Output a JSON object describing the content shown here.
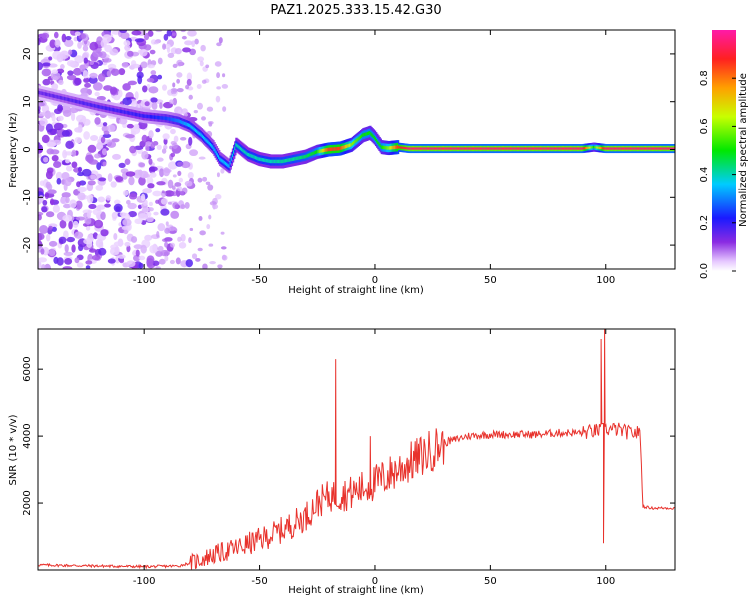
{
  "title": "PAZ1.2025.333.15.42.G30",
  "colors": {
    "snr_line": "#e8322c",
    "axis": "#000000",
    "background": "#ffffff"
  },
  "chart_data": [
    {
      "type": "heatmap",
      "name": "spectrogram",
      "xlabel": "Height of straight line (km)",
      "ylabel": "Frequency (Hz)",
      "xlim": [
        -146,
        130
      ],
      "ylim": [
        -25,
        25
      ],
      "xticks": [
        -100,
        -50,
        0,
        50,
        100
      ],
      "yticks": [
        -20,
        -10,
        0,
        10,
        20
      ],
      "colorbar": {
        "label": "Normalized spectral amplitude",
        "range": [
          0,
          1
        ],
        "ticks": [
          "0.0",
          "0.2",
          "0.4",
          "0.6",
          "0.8"
        ]
      },
      "ridge_x": [
        -146,
        -120,
        -100,
        -90,
        -85,
        -80,
        -75,
        -70,
        -67,
        -63,
        -60,
        -55,
        -50,
        -45,
        -40,
        -35,
        -30,
        -25,
        -20,
        -15,
        -10,
        -5,
        -2,
        0,
        3,
        6,
        10,
        15,
        30,
        60,
        90,
        95,
        100,
        110,
        130
      ],
      "ridge_y": [
        12,
        9,
        7,
        6.5,
        6,
        5,
        3,
        0.5,
        -2,
        -3.5,
        1,
        -1,
        -2,
        -2.5,
        -2.5,
        -2,
        -1.5,
        -0.5,
        0,
        0.2,
        1,
        3,
        3.5,
        2.5,
        0.5,
        0.3,
        0.5,
        0.2,
        0.2,
        0.2,
        0.2,
        0.5,
        0.2,
        0.2,
        0.2
      ],
      "ridge_amplitude": [
        0.15,
        0.18,
        0.2,
        0.25,
        0.3,
        0.35,
        0.35,
        0.35,
        0.35,
        0.35,
        0.4,
        0.4,
        0.4,
        0.4,
        0.42,
        0.42,
        0.45,
        0.5,
        0.85,
        0.85,
        0.6,
        0.5,
        0.5,
        0.5,
        0.5,
        0.6,
        0.85,
        0.95,
        0.95,
        0.95,
        0.95,
        0.5,
        0.95,
        0.95,
        0.95
      ]
    },
    {
      "type": "line",
      "name": "snr",
      "xlabel": "Height of straight line (km)",
      "ylabel": "SNR (10 * v/v)",
      "xlim": [
        -146,
        130
      ],
      "ylim": [
        0,
        7200
      ],
      "xticks": [
        -100,
        -50,
        0,
        50,
        100
      ],
      "yticks": [
        2000,
        4000,
        6000
      ],
      "x": [
        -146,
        -120,
        -100,
        -85,
        -78,
        -70,
        -60,
        -50,
        -40,
        -30,
        -25,
        -20,
        -10,
        0,
        10,
        20,
        30,
        40,
        50,
        60,
        70,
        80,
        90,
        95,
        100,
        105,
        110,
        115,
        116,
        120,
        130
      ],
      "y": [
        150,
        120,
        100,
        120,
        250,
        450,
        650,
        900,
        1200,
        1600,
        2000,
        2200,
        2300,
        2600,
        3000,
        3400,
        3800,
        4000,
        4050,
        4050,
        4050,
        4100,
        4100,
        4150,
        4200,
        4200,
        4100,
        4100,
        1900,
        1850,
        1850
      ],
      "spikes": [
        {
          "x": -17,
          "y": 6300
        },
        {
          "x": -2,
          "y": 4000
        },
        {
          "x": 98,
          "y": 6900
        },
        {
          "x": 99.5,
          "y": 7200
        },
        {
          "x": 99,
          "y": 800
        }
      ]
    }
  ]
}
